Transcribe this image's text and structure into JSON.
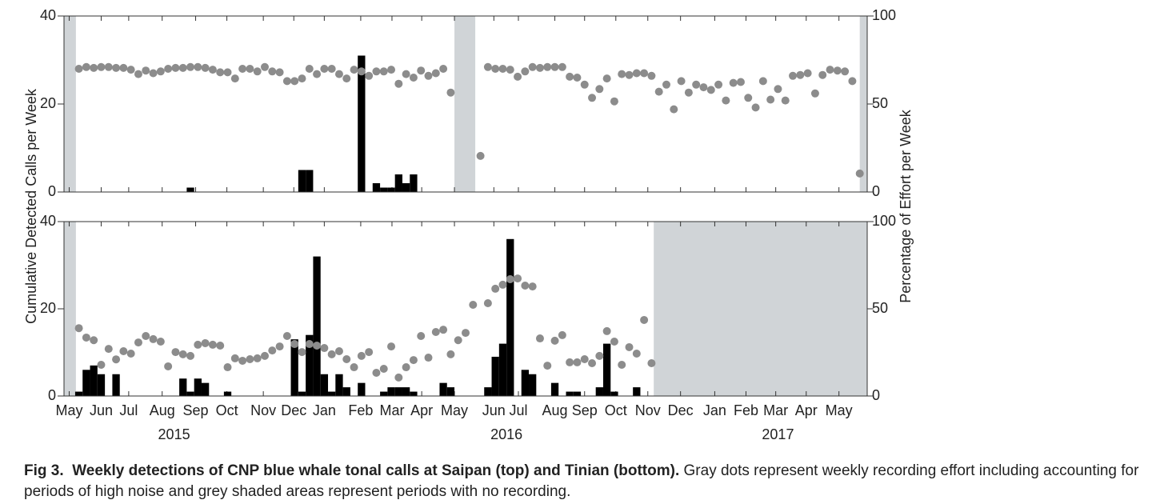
{
  "chart_data": [
    {
      "type": "combo",
      "xlim": [
        -2,
        106
      ],
      "ylim": [
        0,
        40
      ],
      "yticks": [
        0,
        20,
        40
      ],
      "y2lim": [
        0,
        100
      ],
      "y2ticks": [
        0,
        50,
        100
      ],
      "ylabel": "Cumulative Detected Calls per Week",
      "y2label": "Percentage of Effort per Week",
      "no_recording_color": "#d0d4d7",
      "no_recording": [
        [
          -2,
          -0.4
        ],
        [
          50.5,
          53.3
        ],
        [
          105,
          106
        ]
      ],
      "series": [
        {
          "type": "bar",
          "color": "#000000",
          "x": [
            15,
            30,
            31,
            38,
            40,
            41,
            42,
            43,
            44,
            45
          ],
          "values": [
            1,
            5,
            5,
            31,
            2,
            1,
            1,
            4,
            2,
            4
          ]
        },
        {
          "type": "scatter",
          "axis": "y2",
          "color": "#8c8c8c",
          "x": [
            0,
            1,
            2,
            3,
            4,
            5,
            6,
            7,
            8,
            9,
            10,
            11,
            12,
            13,
            14,
            15,
            16,
            17,
            18,
            19,
            20,
            21,
            22,
            23,
            24,
            25,
            26,
            27,
            28,
            29,
            30,
            31,
            32,
            33,
            34,
            35,
            36,
            37,
            38,
            39,
            40,
            41,
            42,
            43,
            44,
            45,
            46,
            47,
            48,
            49,
            50,
            54,
            55,
            56,
            57,
            58,
            59,
            60,
            61,
            62,
            63,
            64,
            65,
            66,
            67,
            68,
            69,
            70,
            71,
            72,
            73,
            74,
            75,
            76,
            77,
            78,
            79,
            80,
            81,
            82,
            83,
            84,
            85,
            86,
            87,
            88,
            89,
            90,
            91,
            92,
            93,
            94,
            95,
            96,
            97,
            98,
            99,
            100,
            101,
            102,
            103,
            104,
            105
          ],
          "values": [
            70,
            71,
            70.5,
            71,
            71,
            70.5,
            70.5,
            69.5,
            67,
            69,
            67.5,
            68.5,
            70,
            70.5,
            70.5,
            71,
            71,
            70.5,
            69.5,
            68,
            68,
            64.5,
            70,
            70,
            68.5,
            71,
            68.5,
            68,
            63,
            63,
            64.5,
            70,
            67,
            70,
            70,
            67,
            64.5,
            69.5,
            68.5,
            66,
            68.5,
            68.5,
            69.5,
            61.5,
            67,
            65,
            69,
            66,
            67.5,
            70,
            56.5,
            20.5,
            71,
            70,
            70,
            69.5,
            65.5,
            68.5,
            71,
            70.5,
            71,
            71,
            71,
            65.5,
            65,
            61,
            53.5,
            58.5,
            64.5,
            51.5,
            67,
            66.5,
            67.5,
            67.5,
            66,
            57,
            61,
            47,
            63,
            56.5,
            61,
            59.5,
            58,
            61,
            52,
            62,
            62.5,
            53.5,
            48,
            63,
            52.5,
            58.5,
            52,
            66,
            66.5,
            67.5,
            56,
            66.5,
            69.5,
            69,
            68.5,
            63,
            10.5
          ]
        }
      ]
    },
    {
      "type": "combo",
      "xlim": [
        -2,
        106
      ],
      "ylim": [
        0,
        40
      ],
      "yticks": [
        0,
        20,
        40
      ],
      "y2lim": [
        0,
        100
      ],
      "y2ticks": [
        0,
        50,
        100
      ],
      "no_recording_color": "#d0d4d7",
      "no_recording": [
        [
          -2,
          -0.4
        ],
        [
          77.3,
          106
        ]
      ],
      "xticks": [
        {
          "value": -1.3,
          "label": "May"
        },
        {
          "value": 3,
          "label": "Jun"
        },
        {
          "value": 6.7,
          "label": "Jul"
        },
        {
          "value": 11.2,
          "label": "Aug"
        },
        {
          "value": 15.7,
          "label": "Sep"
        },
        {
          "value": 19.9,
          "label": "Oct"
        },
        {
          "value": 24.8,
          "label": "Nov"
        },
        {
          "value": 28.9,
          "label": "Dec"
        },
        {
          "value": 33,
          "label": "Jan"
        },
        {
          "value": 37.9,
          "label": "Feb"
        },
        {
          "value": 42.1,
          "label": "Mar"
        },
        {
          "value": 46.1,
          "label": "Apr"
        },
        {
          "value": 50.5,
          "label": "May"
        },
        {
          "value": 55.8,
          "label": "Jun"
        },
        {
          "value": 59.1,
          "label": "Jul"
        },
        {
          "value": 64,
          "label": "Aug"
        },
        {
          "value": 68,
          "label": "Sep"
        },
        {
          "value": 72.2,
          "label": "Oct"
        },
        {
          "value": 76.5,
          "label": "Nov"
        },
        {
          "value": 80.9,
          "label": "Dec"
        },
        {
          "value": 85.5,
          "label": "Jan"
        },
        {
          "value": 89.7,
          "label": "Feb"
        },
        {
          "value": 93.7,
          "label": "Mar"
        },
        {
          "value": 97.8,
          "label": "Apr"
        },
        {
          "value": 102.2,
          "label": "May"
        }
      ],
      "year_labels": [
        {
          "value": 12.8,
          "label": "2015"
        },
        {
          "value": 57.5,
          "label": "2016"
        },
        {
          "value": 94,
          "label": "2017"
        }
      ],
      "series": [
        {
          "type": "bar",
          "color": "#000000",
          "x": [
            0,
            1,
            2,
            3,
            5,
            14,
            15,
            16,
            17,
            20,
            29,
            30,
            31,
            32,
            33,
            34,
            35,
            36,
            38,
            41,
            42,
            43,
            44,
            45,
            49,
            50,
            55,
            56,
            57,
            58,
            60,
            61,
            64,
            66,
            67,
            70,
            71,
            72,
            75
          ],
          "values": [
            1,
            6,
            7,
            5,
            5,
            4,
            1,
            4,
            3,
            1,
            13,
            1,
            14,
            32,
            5,
            1,
            5,
            2,
            3,
            1,
            2,
            2,
            2,
            1,
            3,
            2,
            2,
            9,
            12,
            36,
            6,
            5,
            3,
            1,
            1,
            2,
            12,
            1,
            2
          ]
        },
        {
          "type": "scatter",
          "axis": "y2",
          "color": "#8c8c8c",
          "x": [
            0,
            1,
            2,
            3,
            4,
            5,
            6,
            7,
            8,
            9,
            10,
            11,
            12,
            13,
            14,
            15,
            16,
            17,
            18,
            19,
            20,
            21,
            22,
            23,
            24,
            25,
            26,
            27,
            28,
            29,
            30,
            31,
            32,
            33,
            34,
            35,
            36,
            37,
            38,
            39,
            40,
            41,
            42,
            43,
            44,
            45,
            46,
            47,
            48,
            49,
            50,
            51,
            52,
            53,
            55,
            56,
            57,
            58,
            59,
            60,
            61,
            62,
            63,
            64,
            65,
            66,
            67,
            68,
            69,
            70,
            71,
            72,
            73,
            74,
            75,
            76,
            77
          ],
          "values": [
            38.9,
            33.5,
            32,
            17.9,
            27,
            21,
            25.7,
            24.3,
            30.7,
            34.4,
            32.6,
            31.2,
            17,
            25.2,
            23.9,
            23,
            29.4,
            30.3,
            29.4,
            28.9,
            16.5,
            21.6,
            20.2,
            21.1,
            21.6,
            23,
            26.1,
            28.4,
            34.4,
            29.8,
            25.2,
            29.8,
            28.9,
            27.5,
            23.9,
            25.7,
            21.1,
            16.5,
            23,
            25.2,
            13.3,
            15.6,
            28.4,
            10.6,
            16.5,
            20.6,
            34.4,
            22,
            36.7,
            38,
            23.9,
            32,
            36.2,
            52.3,
            53.2,
            61.5,
            63.8,
            67,
            67.4,
            63.3,
            62.8,
            33,
            17.4,
            31.7,
            34.9,
            19.3,
            19.3,
            21.1,
            18.8,
            23,
            37.2,
            31.2,
            17.9,
            28,
            24.3,
            43.6,
            18.8
          ]
        }
      ]
    }
  ],
  "caption": {
    "figure_label": "Fig 3.",
    "title": "Weekly detections of CNP blue whale tonal calls at Saipan (top) and Tinian (bottom).",
    "text": "Gray dots represent weekly recording effort including accounting for periods of high noise and grey shaded areas represent periods with no recording."
  }
}
